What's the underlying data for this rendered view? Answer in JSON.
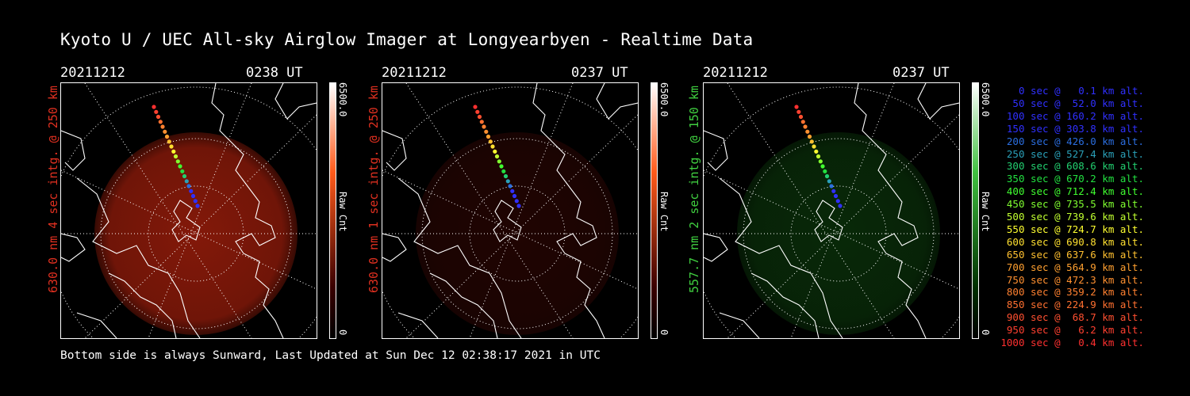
{
  "title": "Kyoto U / UEC All-sky Airglow Imager at Longyearbyen - Realtime Data",
  "footer": "Bottom side is always Sunward, Last Updated at Sun Dec 12 02:38:17 2021 in UTC",
  "panels": [
    {
      "date": "20211212",
      "time": "0238 UT",
      "side_label": "630.0 nm 4 sec intg. @ 250 km",
      "label_color": "#e03020",
      "colorbar_max": "6500.0",
      "colorbar_min": "0",
      "colorbar_unit": "Raw Cnt",
      "glow_color": "#8a1a0a",
      "bar_top": "#ffffff",
      "bar_mid": "#ff5a1a",
      "bar_bottom": "#3a0000",
      "glow_strength": 0.95
    },
    {
      "date": "20211212",
      "time": "0237 UT",
      "side_label": "630.0 nm 1 sec intg. @ 250 km",
      "label_color": "#e03020",
      "colorbar_max": "6500.0",
      "colorbar_min": "0",
      "colorbar_unit": "Raw Cnt",
      "glow_color": "#3a0804",
      "bar_top": "#ffffff",
      "bar_mid": "#ff5a1a",
      "bar_bottom": "#3a0000",
      "glow_strength": 0.55
    },
    {
      "date": "20211212",
      "time": "0237 UT",
      "side_label": "557.7 nm 2 sec intg. @ 150 km",
      "label_color": "#40d040",
      "colorbar_max": "6500.0",
      "colorbar_min": "0",
      "colorbar_unit": "Raw Cnt",
      "glow_color": "#0c3a0c",
      "bar_top": "#ffffff",
      "bar_mid": "#40c040",
      "bar_bottom": "#003000",
      "glow_strength": 0.7
    }
  ],
  "legend": [
    {
      "text": "0 sec @   0.1 km alt.",
      "color": "#3030ff"
    },
    {
      "text": "50 sec @  52.0 km alt.",
      "color": "#3030ff"
    },
    {
      "text": "100 sec @ 160.2 km alt.",
      "color": "#3030ff"
    },
    {
      "text": "150 sec @ 303.8 km alt.",
      "color": "#3030ff"
    },
    {
      "text": "200 sec @ 426.0 km alt.",
      "color": "#2b6ee0"
    },
    {
      "text": "250 sec @ 527.4 km alt.",
      "color": "#2aa0b8"
    },
    {
      "text": "300 sec @ 608.6 km alt.",
      "color": "#22d070"
    },
    {
      "text": "350 sec @ 670.2 km alt.",
      "color": "#22e040"
    },
    {
      "text": "400 sec @ 712.4 km alt.",
      "color": "#40ff30"
    },
    {
      "text": "450 sec @ 735.5 km alt.",
      "color": "#80ff30"
    },
    {
      "text": "500 sec @ 739.6 km alt.",
      "color": "#c0ff30"
    },
    {
      "text": "550 sec @ 724.7 km alt.",
      "color": "#ffff30"
    },
    {
      "text": "600 sec @ 690.8 km alt.",
      "color": "#ffe030"
    },
    {
      "text": "650 sec @ 637.6 km alt.",
      "color": "#ffc030"
    },
    {
      "text": "700 sec @ 564.9 km alt.",
      "color": "#ffa030"
    },
    {
      "text": "750 sec @ 472.3 km alt.",
      "color": "#ff9030"
    },
    {
      "text": "800 sec @ 359.2 km alt.",
      "color": "#ff8030"
    },
    {
      "text": "850 sec @ 224.9 km alt.",
      "color": "#ff7030"
    },
    {
      "text": "900 sec @  68.7 km alt.",
      "color": "#ff5030"
    },
    {
      "text": "950 sec @   6.2 km alt.",
      "color": "#ff4030"
    },
    {
      "text": "1000 sec @   0.4 km alt.",
      "color": "#ff3030"
    }
  ]
}
